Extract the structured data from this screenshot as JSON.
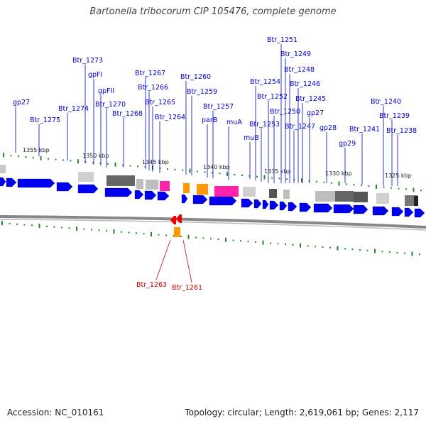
{
  "title": "Bartonella tribocorum CIP 105476, complete genome",
  "footer": {
    "accession": "Accession: NC_010161",
    "topology": "Topology: circular; Length: 2,619,061 bp; Genes: 2,117"
  },
  "colors": {
    "gene_forward": "#0000ee",
    "label_forward": "#0000cc",
    "label_reverse": "#cc0000",
    "gene_reverse": "#ee0000",
    "orange_feature": "#ff9900",
    "magenta_feature": "#ff22aa",
    "tick": "#228b22",
    "backbone": "#888888"
  },
  "kbp_labels": [
    "1355 kbp",
    "1350 kbp",
    "1345 kbp",
    "1340 kbp",
    "1335 kbp",
    "1330 kbp",
    "1325 kbp"
  ],
  "gene_labels_above": [
    "gp27",
    "Btr_1275",
    "Btr_1274",
    "Btr_1273",
    "gpFI",
    "gpFII",
    "Btr_1270",
    "Btr_1268",
    "Btr_1267",
    "Btr_1266",
    "Btr_1265",
    "Btr_1264",
    "Btr_1260",
    "Btr_1259",
    "parB",
    "Btr_1257",
    "muA",
    "muB",
    "Btr_1254",
    "Btr_1253",
    "Btr_1252",
    "Btr_1251",
    "Btr_1250",
    "Btr_1249",
    "Btr_1248",
    "Btr_1247",
    "Btr_1246",
    "Btr_1245",
    "gp27",
    "gp28",
    "gp29",
    "Btr_1241",
    "Btr_1240",
    "Btr_1239",
    "Btr_1238"
  ],
  "gene_labels_below": [
    "Btr_1263",
    "Btr_1261"
  ]
}
